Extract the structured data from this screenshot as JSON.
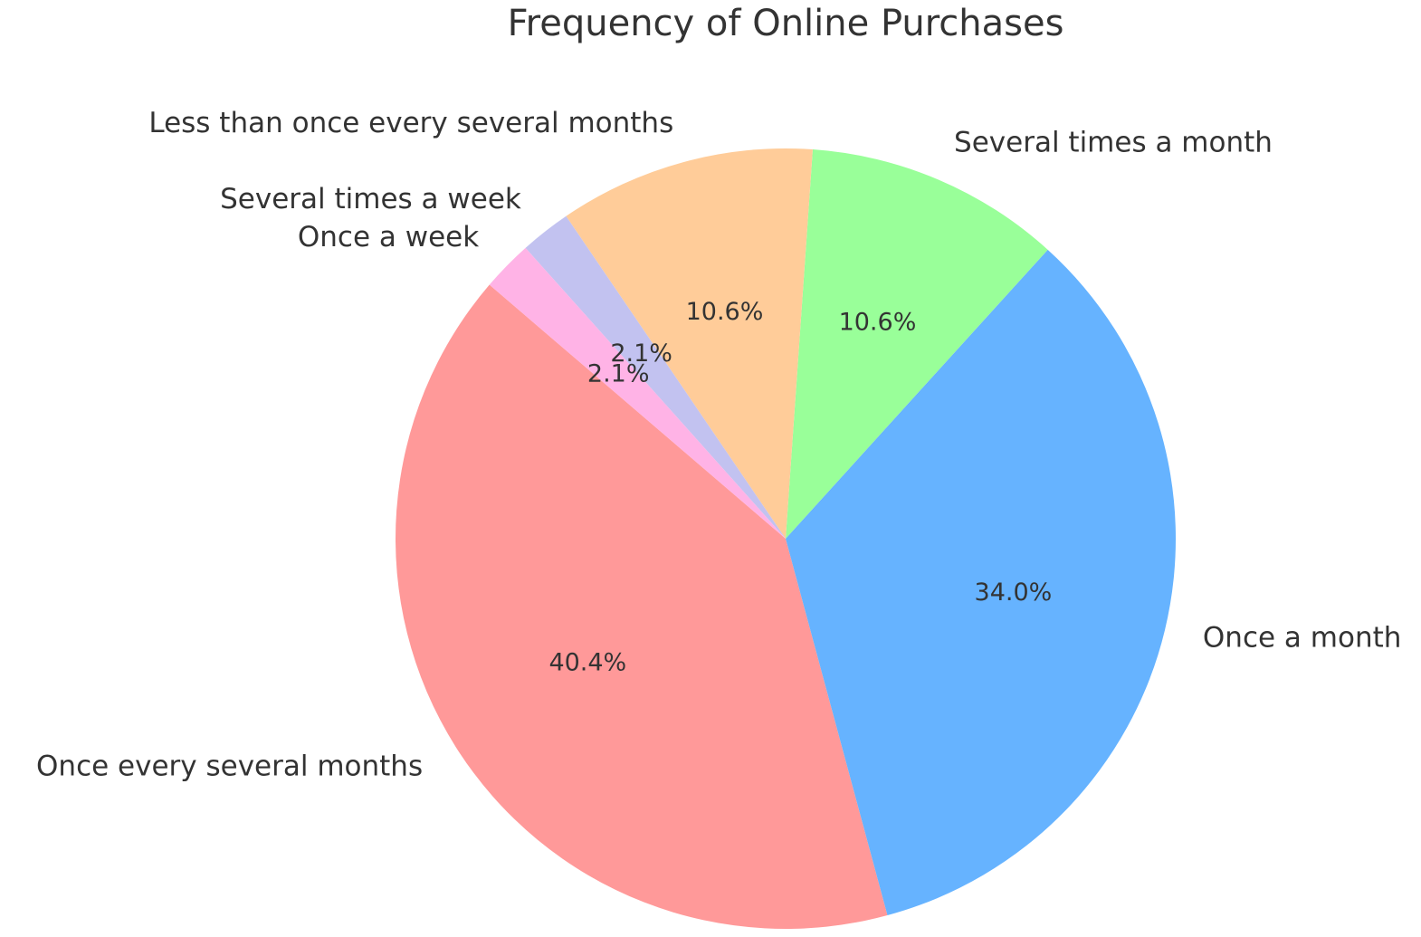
{
  "chart_data": {
    "type": "pie",
    "title": "Frequency of Online Purchases",
    "categories": [
      "Once every several months",
      "Once a month",
      "Several times a month",
      "Less than once every several months",
      "Several times a week",
      "Once a week"
    ],
    "values": [
      40.4,
      34.0,
      10.6,
      10.6,
      2.1,
      2.1
    ],
    "value_labels": [
      "40.4%",
      "34.0%",
      "10.6%",
      "10.6%",
      "2.1%",
      "2.1%"
    ],
    "colors": [
      "#ff9999",
      "#66b3ff",
      "#99ff99",
      "#ffcc99",
      "#c2c2f0",
      "#ffb3e6"
    ]
  }
}
